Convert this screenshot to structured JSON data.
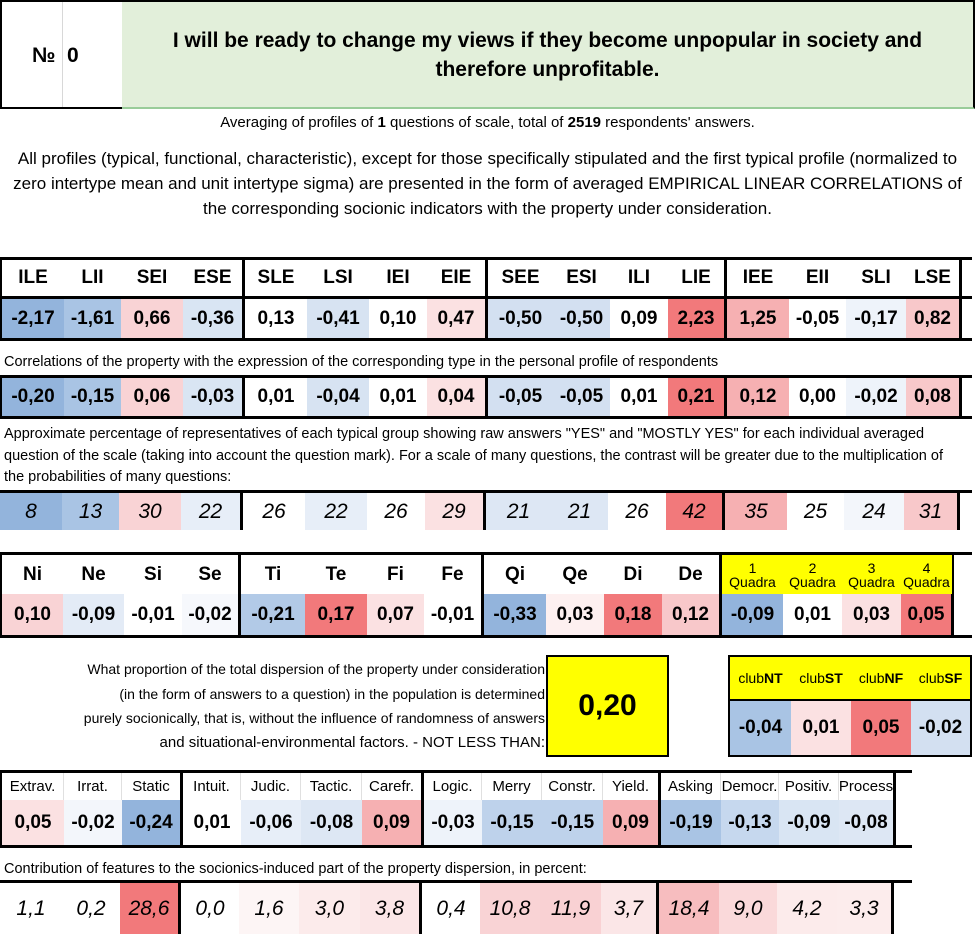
{
  "header": {
    "no_label": "№",
    "number": "0",
    "title": "I will be ready to change my views if they become unpopular in society and therefore unprofitable."
  },
  "averaging": {
    "prefix": "Averaging of profiles of ",
    "questions": "1",
    "middle": " questions of scale, total of ",
    "respondents": "2519",
    "suffix": " respondents' answers."
  },
  "intro": "All profiles (typical, functional, characteristic), except for those specifically stipulated and the first typical profile (normalized to zero intertype mean and unit intertype sigma) are presented in the form of averaged EMPIRICAL LINEAR CORRELATIONS of the corresponding socionic indicators with the property under consideration.",
  "types": {
    "headers": [
      "ILE",
      "LII",
      "SEI",
      "ESE",
      "SLE",
      "LSI",
      "IEI",
      "EIE",
      "SEE",
      "ESI",
      "ILI",
      "LIE",
      "IEE",
      "EII",
      "SLI",
      "LSE"
    ],
    "profile": [
      "-2,17",
      "-1,61",
      "0,66",
      "-0,36",
      "0,13",
      "-0,41",
      "0,10",
      "0,47",
      "-0,50",
      "-0,50",
      "0,09",
      "2,23",
      "1,25",
      "-0,05",
      "-0,17",
      "0,82"
    ],
    "profile_colors": [
      "#93b4dc",
      "#a9c4e4",
      "#f9d3d5",
      "#d9e5f3",
      "#ffffff",
      "#d7e3f2",
      "#ffffff",
      "#fbe1e2",
      "#d3e0f1",
      "#d3e0f1",
      "#ffffff",
      "#f2797b",
      "#f6b0b2",
      "#ffffff",
      "#eef3fa",
      "#f8c8ca"
    ],
    "corr_note": "Correlations of the property with the expression of the corresponding type in the personal profile of respondents",
    "correlations": [
      "-0,20",
      "-0,15",
      "0,06",
      "-0,03",
      "0,01",
      "-0,04",
      "0,01",
      "0,04",
      "-0,05",
      "-0,05",
      "0,01",
      "0,21",
      "0,12",
      "0,00",
      "-0,02",
      "0,08"
    ],
    "corr_colors": [
      "#93b4dc",
      "#a9c4e4",
      "#f9d3d5",
      "#d9e5f3",
      "#ffffff",
      "#d7e3f2",
      "#ffffff",
      "#fbe1e2",
      "#d3e0f1",
      "#d3e0f1",
      "#ffffff",
      "#f2797b",
      "#f6b0b2",
      "#ffffff",
      "#eef3fa",
      "#f8c8ca"
    ],
    "pct_note": "Approximate percentage of representatives of each typical group showing raw answers \"YES\" and \"MOSTLY YES\" for each individual averaged question of the scale (taking into account the question mark). For a scale of many questions, the contrast will be greater due to the multiplication of the probabilities of many questions:",
    "percentages": [
      "8",
      "13",
      "30",
      "22",
      "26",
      "22",
      "26",
      "29",
      "21",
      "21",
      "26",
      "42",
      "35",
      "25",
      "24",
      "31"
    ],
    "pct_colors": [
      "#93b4dc",
      "#a9c4e4",
      "#f9d3d5",
      "#e7eef8",
      "#ffffff",
      "#e7eef8",
      "#ffffff",
      "#fbe1e2",
      "#dde7f4",
      "#dde7f4",
      "#ffffff",
      "#f2797b",
      "#f6b0b2",
      "#ffffff",
      "#f3f6fb",
      "#f8c8ca"
    ]
  },
  "functions": {
    "headers": [
      "Ni",
      "Ne",
      "Si",
      "Se",
      "Ti",
      "Te",
      "Fi",
      "Fe",
      "Qi",
      "Qe",
      "Di",
      "De"
    ],
    "values": [
      "0,10",
      "-0,09",
      "-0,01",
      "-0,02",
      "-0,21",
      "0,17",
      "0,07",
      "-0,01",
      "-0,33",
      "0,03",
      "0,18",
      "0,12"
    ],
    "colors": [
      "#f9d3d5",
      "#e3ebf6",
      "#ffffff",
      "#f6f8fc",
      "#b2cae7",
      "#f2797b",
      "#fbe1e2",
      "#ffffff",
      "#93b4dc",
      "#fdf0f0",
      "#f2797b",
      "#f8c8ca"
    ],
    "quadras": [
      {
        "num": "1",
        "label": "Quadra"
      },
      {
        "num": "2",
        "label": "Quadra"
      },
      {
        "num": "3",
        "label": "Quadra"
      },
      {
        "num": "4",
        "label": "Quadra"
      }
    ],
    "quadra_values": [
      "-0,09",
      "0,01",
      "0,03",
      "0,05"
    ],
    "quadra_colors": [
      "#93b4dc",
      "#ffffff",
      "#fbe1e2",
      "#f2797b"
    ]
  },
  "dispersion": {
    "lines": [
      "What proportion of the total dispersion of the property under consideration",
      "(in the form of answers to a question) in the population is determined",
      "purely socionically, that is, without the influence of randomness of answers",
      "and situational-environmental factors. - NOT LESS THAN:"
    ],
    "value": "0,20"
  },
  "clubs": {
    "headers": [
      {
        "pre": "club",
        "b": "NT"
      },
      {
        "pre": "club",
        "b": "ST"
      },
      {
        "pre": "club",
        "b": "NF"
      },
      {
        "pre": "club",
        "b": "SF"
      }
    ],
    "values": [
      "-0,04",
      "0,01",
      "0,05",
      "-0,02"
    ],
    "colors": [
      "#a9c4e4",
      "#fbe1e2",
      "#f2797b",
      "#d3e0f1"
    ]
  },
  "traits": {
    "headers": [
      "Extrav.",
      "Irrat.",
      "Static",
      "Intuit.",
      "Judic.",
      "Tactic.",
      "Carefr.",
      "Logic.",
      "Merry",
      "Constr.",
      "Yield.",
      "Asking",
      "Democr.",
      "Positiv.",
      "Process"
    ],
    "values": [
      "0,05",
      "-0,02",
      "-0,24",
      "0,01",
      "-0,06",
      "-0,08",
      "0,09",
      "-0,03",
      "-0,15",
      "-0,15",
      "0,09",
      "-0,19",
      "-0,13",
      "-0,09",
      "-0,08"
    ],
    "colors": [
      "#fbe1e2",
      "#f3f6fb",
      "#93b4dc",
      "#ffffff",
      "#e7eef8",
      "#dde7f4",
      "#f6b0b2",
      "#eef3fa",
      "#bed2eb",
      "#bed2eb",
      "#f6b0b2",
      "#a9c4e4",
      "#c6d8ee",
      "#d9e5f3",
      "#dde7f4"
    ],
    "contrib_note": "Contribution of features to the socionics-induced part of the property dispersion, in percent:",
    "contributions": [
      "1,1",
      "0,2",
      "28,6",
      "0,0",
      "1,6",
      "3,0",
      "3,8",
      "0,4",
      "10,8",
      "11,9",
      "3,7",
      "18,4",
      "9,0",
      "4,2",
      "3,3"
    ],
    "contrib_colors": [
      "#ffffff",
      "#ffffff",
      "#f2797b",
      "#ffffff",
      "#fdf5f5",
      "#fcebeb",
      "#fbe6e7",
      "#ffffff",
      "#f9d3d5",
      "#f9d1d3",
      "#fbe6e7",
      "#f7bdbf",
      "#fad9da",
      "#fcebeb",
      "#fcecec"
    ]
  }
}
